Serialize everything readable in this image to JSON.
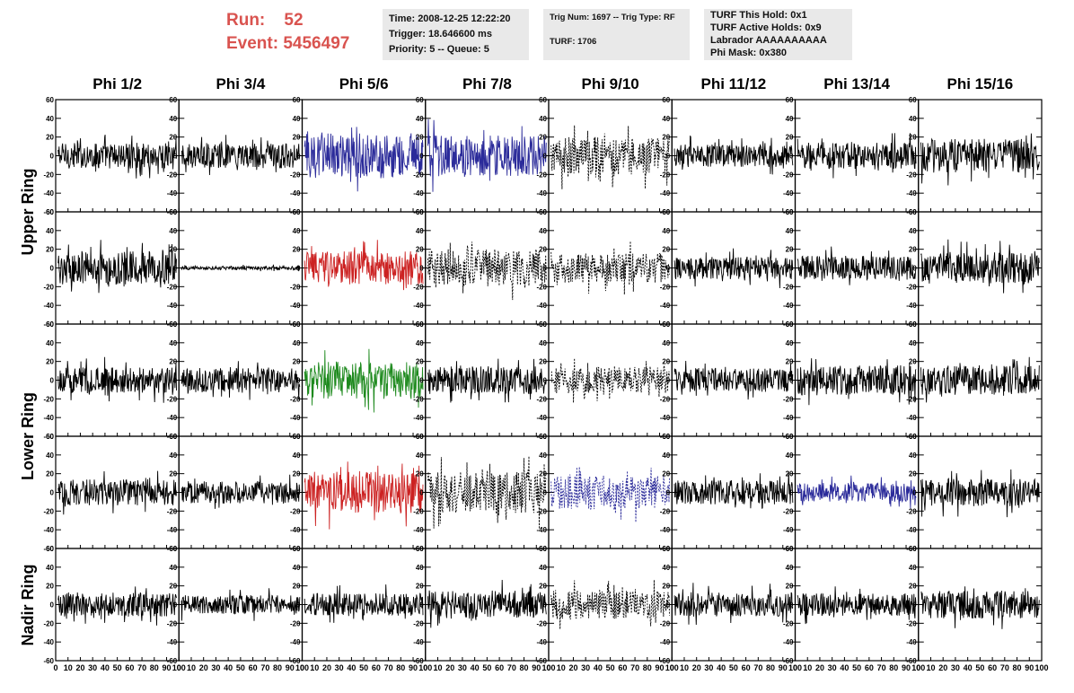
{
  "header": {
    "run_label": "Run:",
    "run_value": "52",
    "event_label": "Event:",
    "event_value": "5456497",
    "time": "Time: 2008-12-25 12:22:20",
    "trigger": "Trigger: 18.646600 ms",
    "priority": "Priority: 5 -- Queue: 5",
    "trig_num": "Trig Num: 1697 -- Trig Type: RF",
    "turf": "TURF: 1706",
    "turf_this_hold": "TURF This Hold: 0x1",
    "turf_active_holds": "TURF Active Holds: 0x9",
    "labrador": "Labrador AAAAAAAAAA",
    "phi_mask": "Phi Mask: 0x380"
  },
  "columns": [
    "Phi 1/2",
    "Phi 3/4",
    "Phi 5/6",
    "Phi 7/8",
    "Phi 9/10",
    "Phi 11/12",
    "Phi 13/14",
    "Phi 15/16"
  ],
  "ring_labels": [
    {
      "label": "Upper Ring",
      "rows": [
        0,
        1
      ]
    },
    {
      "label": "Lower Ring",
      "rows": [
        2,
        3
      ]
    },
    {
      "label": "Nadir Ring",
      "rows": [
        4
      ]
    }
  ],
  "colors": {
    "black": "#000000",
    "blue": "#2b2b9a",
    "red": "#cc2222",
    "green": "#1e8a1e",
    "info_bg": "#e9e9e9",
    "run_text": "#d9534f"
  },
  "chart_data": {
    "type": "line",
    "description_of_axes": "Each panel is a waveform plot; x axis 0-100, y axis -60 to 60",
    "xlim": [
      0,
      100
    ],
    "ylim": [
      -60,
      60
    ],
    "xticks": [
      0,
      10,
      20,
      30,
      40,
      50,
      60,
      70,
      80,
      90,
      100
    ],
    "yticks": [
      -60,
      -40,
      -20,
      0,
      20,
      40,
      60
    ],
    "panels": [
      [
        {
          "color": "black",
          "style": "solid",
          "amp": 14
        },
        {
          "color": "black",
          "style": "solid",
          "amp": 13
        },
        {
          "color": "blue",
          "style": "solid",
          "amp": 24
        },
        {
          "color": "blue",
          "style": "solid",
          "amp": 22
        },
        {
          "color": "black",
          "style": "dashed",
          "amp": 20
        },
        {
          "color": "black",
          "style": "solid",
          "amp": 12
        },
        {
          "color": "black",
          "style": "solid",
          "amp": 14
        },
        {
          "color": "black",
          "style": "solid",
          "amp": 18
        }
      ],
      [
        {
          "color": "black",
          "style": "solid",
          "amp": 18
        },
        {
          "color": "black",
          "style": "solid",
          "amp": 2
        },
        {
          "color": "red",
          "style": "solid",
          "amp": 18
        },
        {
          "color": "black",
          "style": "dashed",
          "amp": 20
        },
        {
          "color": "black",
          "style": "dashed",
          "amp": 16
        },
        {
          "color": "black",
          "style": "solid",
          "amp": 12
        },
        {
          "color": "black",
          "style": "solid",
          "amp": 13
        },
        {
          "color": "black",
          "style": "solid",
          "amp": 17
        }
      ],
      [
        {
          "color": "black",
          "style": "solid",
          "amp": 14
        },
        {
          "color": "black",
          "style": "solid",
          "amp": 13
        },
        {
          "color": "green",
          "style": "solid",
          "amp": 20
        },
        {
          "color": "black",
          "style": "solid",
          "amp": 15
        },
        {
          "color": "black",
          "style": "dashed",
          "amp": 14
        },
        {
          "color": "black",
          "style": "solid",
          "amp": 13
        },
        {
          "color": "black",
          "style": "solid",
          "amp": 16
        },
        {
          "color": "black",
          "style": "solid",
          "amp": 16
        }
      ],
      [
        {
          "color": "black",
          "style": "solid",
          "amp": 14
        },
        {
          "color": "black",
          "style": "solid",
          "amp": 12
        },
        {
          "color": "red",
          "style": "solid",
          "amp": 22
        },
        {
          "color": "black",
          "style": "dashed",
          "amp": 22
        },
        {
          "color": "blue",
          "style": "dashed",
          "amp": 18
        },
        {
          "color": "black",
          "style": "solid",
          "amp": 13
        },
        {
          "color": "blue",
          "style": "solid",
          "amp": 10
        },
        {
          "color": "black",
          "style": "solid",
          "amp": 15
        }
      ],
      [
        {
          "color": "black",
          "style": "solid",
          "amp": 13
        },
        {
          "color": "black",
          "style": "solid",
          "amp": 10
        },
        {
          "color": "black",
          "style": "solid",
          "amp": 12
        },
        {
          "color": "black",
          "style": "solid",
          "amp": 15
        },
        {
          "color": "black",
          "style": "dashed",
          "amp": 15
        },
        {
          "color": "black",
          "style": "solid",
          "amp": 13
        },
        {
          "color": "black",
          "style": "solid",
          "amp": 12
        },
        {
          "color": "black",
          "style": "solid",
          "amp": 15
        }
      ]
    ]
  }
}
